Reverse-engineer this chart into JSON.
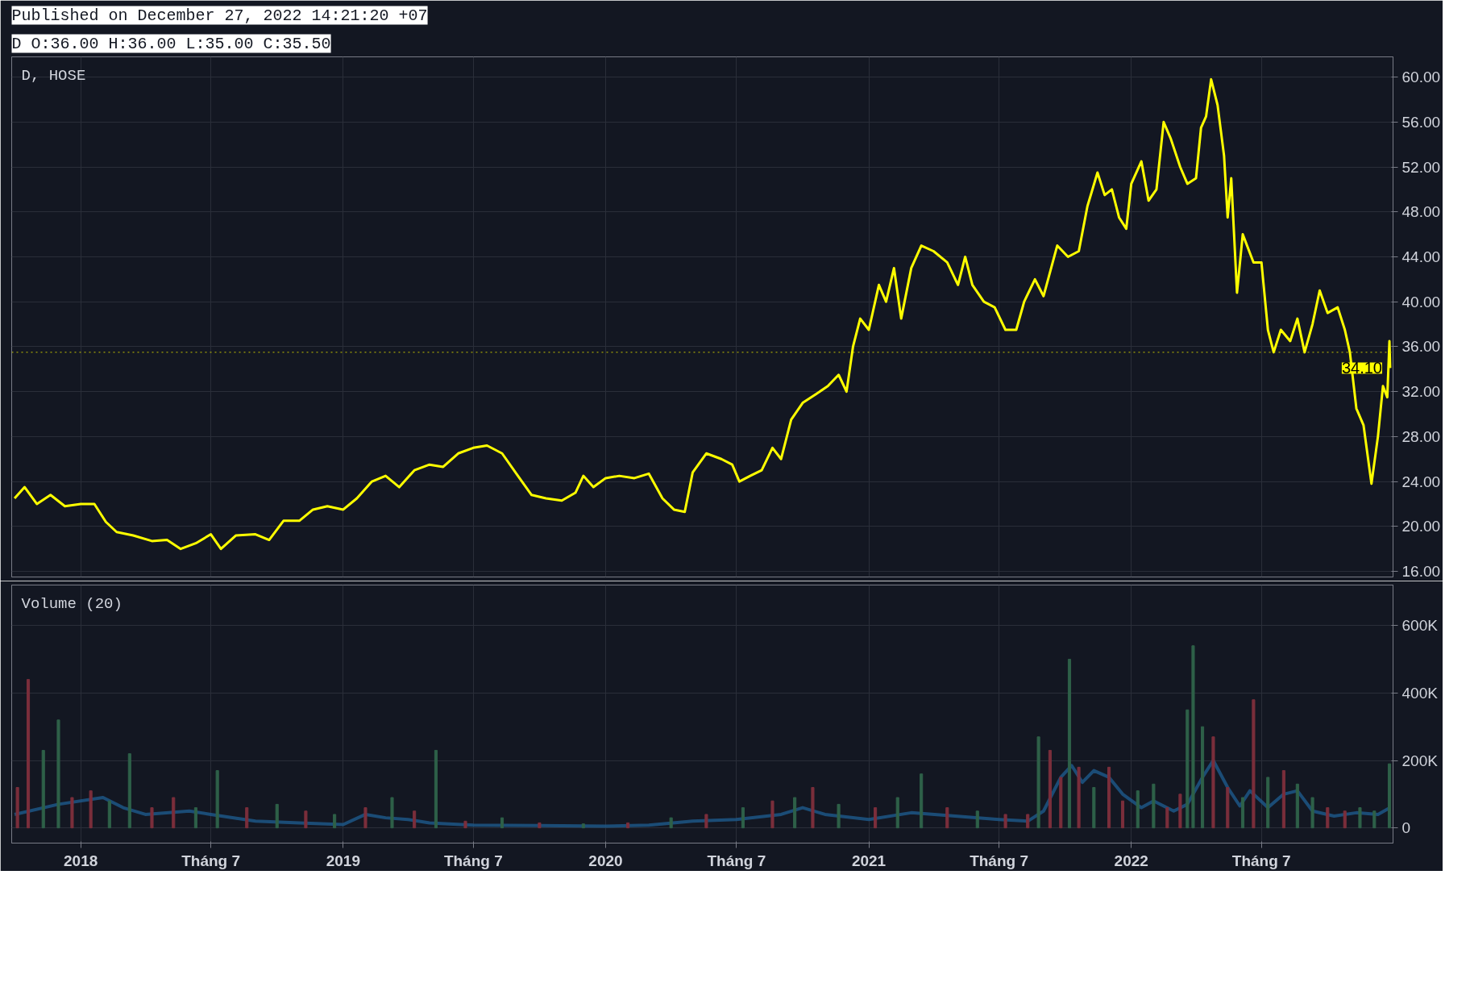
{
  "chart_data": [
    {
      "type": "line",
      "title": "D, HOSE",
      "annotations": [
        "Published on December 27, 2022 14:21:20 +07",
        "D O:36.00 H:36.00 L:35.00 C:35.50",
        {
          "text": "34.10",
          "x": "2022-12-27",
          "y": 34.1
        }
      ],
      "xlim": [
        "2017-09-27",
        "2022-12-31"
      ],
      "xticks": [
        {
          "value": "2018-01-01",
          "label": null
        },
        {
          "value": "2018-07-01",
          "label": null
        },
        {
          "value": "2019-01-01",
          "label": null
        },
        {
          "value": "2019-07-01",
          "label": null
        },
        {
          "value": "2020-01-01",
          "label": null
        },
        {
          "value": "2020-07-01",
          "label": null
        },
        {
          "value": "2021-01-01",
          "label": null
        },
        {
          "value": "2021-07-01",
          "label": null
        },
        {
          "value": "2022-01-01",
          "label": null
        },
        {
          "value": "2022-07-01",
          "label": null
        }
      ],
      "ylim": [
        15.5,
        61.8
      ],
      "yticks": [
        {
          "value": 16,
          "label": "16.00"
        },
        {
          "value": 20,
          "label": "20.00"
        },
        {
          "value": 24,
          "label": "24.00"
        },
        {
          "value": 28,
          "label": "28.00"
        },
        {
          "value": 32,
          "label": "32.00"
        },
        {
          "value": 36,
          "label": "36.00"
        },
        {
          "value": 40,
          "label": "40.00"
        },
        {
          "value": 44,
          "label": "44.00"
        },
        {
          "value": 48,
          "label": "48.00"
        },
        {
          "value": 52,
          "label": "52.00"
        },
        {
          "value": 56,
          "label": "56.00"
        },
        {
          "value": 60,
          "label": "60.00"
        }
      ],
      "tick_labels": "y",
      "grid": true,
      "ref_lines": [
        {
          "axis": "y",
          "value": 35.5,
          "label": null,
          "color": "#c8c800",
          "line_style": "dotted"
        }
      ],
      "series": [
        {
          "color": "#ffff00",
          "x": [
            "2017-10-01",
            "2017-10-15",
            "2017-11-01",
            "2017-11-20",
            "2017-12-10",
            "2018-01-01",
            "2018-01-20",
            "2018-02-05",
            "2018-02-20",
            "2018-03-15",
            "2018-04-10",
            "2018-05-01",
            "2018-05-20",
            "2018-06-10",
            "2018-07-01",
            "2018-07-15",
            "2018-08-05",
            "2018-09-01",
            "2018-09-20",
            "2018-10-10",
            "2018-11-01",
            "2018-11-20",
            "2018-12-10",
            "2019-01-01",
            "2019-01-20",
            "2019-02-10",
            "2019-03-01",
            "2019-03-20",
            "2019-04-10",
            "2019-05-01",
            "2019-05-20",
            "2019-06-10",
            "2019-07-01",
            "2019-07-20",
            "2019-08-10",
            "2019-09-01",
            "2019-09-20",
            "2019-10-10",
            "2019-11-01",
            "2019-11-20",
            "2019-12-01",
            "2019-12-15",
            "2020-01-01",
            "2020-01-20",
            "2020-02-10",
            "2020-03-01",
            "2020-03-20",
            "2020-04-05",
            "2020-04-20",
            "2020-05-01",
            "2020-05-20",
            "2020-06-10",
            "2020-06-25",
            "2020-07-05",
            "2020-07-20",
            "2020-08-05",
            "2020-08-20",
            "2020-09-01",
            "2020-09-15",
            "2020-10-01",
            "2020-10-20",
            "2020-11-05",
            "2020-11-20",
            "2020-12-01",
            "2020-12-10",
            "2020-12-20",
            "2021-01-01",
            "2021-01-15",
            "2021-01-25",
            "2021-02-05",
            "2021-02-15",
            "2021-03-01",
            "2021-03-15",
            "2021-04-01",
            "2021-04-20",
            "2021-05-05",
            "2021-05-15",
            "2021-05-25",
            "2021-06-10",
            "2021-06-25",
            "2021-07-10",
            "2021-07-25",
            "2021-08-05",
            "2021-08-20",
            "2021-09-01",
            "2021-09-20",
            "2021-10-05",
            "2021-10-20",
            "2021-11-01",
            "2021-11-15",
            "2021-11-25",
            "2021-12-05",
            "2021-12-15",
            "2021-12-25",
            "2022-01-01",
            "2022-01-15",
            "2022-01-25",
            "2022-02-05",
            "2022-02-15",
            "2022-02-25",
            "2022-03-10",
            "2022-03-20",
            "2022-04-01",
            "2022-04-08",
            "2022-04-15",
            "2022-04-22",
            "2022-05-01",
            "2022-05-10",
            "2022-05-15",
            "2022-05-20",
            "2022-05-28",
            "2022-06-05",
            "2022-06-20",
            "2022-07-01",
            "2022-07-10",
            "2022-07-18",
            "2022-07-28",
            "2022-08-10",
            "2022-08-20",
            "2022-08-30",
            "2022-09-10",
            "2022-09-20",
            "2022-10-01",
            "2022-10-15",
            "2022-10-25",
            "2022-11-01",
            "2022-11-10",
            "2022-11-20",
            "2022-12-01",
            "2022-12-10",
            "2022-12-17",
            "2022-12-23",
            "2022-12-26",
            "2022-12-27"
          ],
          "values": [
            22.5,
            23.5,
            22.0,
            22.8,
            21.8,
            22.0,
            22.0,
            20.4,
            19.5,
            19.2,
            18.7,
            18.8,
            18.0,
            18.5,
            19.3,
            18.0,
            19.2,
            19.3,
            18.8,
            20.5,
            20.5,
            21.5,
            21.8,
            21.5,
            22.5,
            24.0,
            24.5,
            23.5,
            25.0,
            25.5,
            25.3,
            26.5,
            27.0,
            27.2,
            26.5,
            24.5,
            22.8,
            22.5,
            22.3,
            23.0,
            24.5,
            23.5,
            24.3,
            24.5,
            24.3,
            24.7,
            22.5,
            21.5,
            21.3,
            24.8,
            26.5,
            26.0,
            25.5,
            24.0,
            24.5,
            25.0,
            27.0,
            26.0,
            29.5,
            31.0,
            31.8,
            32.5,
            33.5,
            32.0,
            36.0,
            38.5,
            37.5,
            41.5,
            40.0,
            43.0,
            38.5,
            43.0,
            45.0,
            44.5,
            43.5,
            41.5,
            44.0,
            41.5,
            40.0,
            39.5,
            37.5,
            37.5,
            40.0,
            42.0,
            40.5,
            45.0,
            44.0,
            44.5,
            48.5,
            51.5,
            49.5,
            50.0,
            47.5,
            46.5,
            50.5,
            52.5,
            49.0,
            50.0,
            56.0,
            54.5,
            52.0,
            50.5,
            51.0,
            55.5,
            56.5,
            59.8,
            57.5,
            53.0,
            47.5,
            51.0,
            40.8,
            46.0,
            43.5,
            43.5,
            37.5,
            35.5,
            37.5,
            36.5,
            38.5,
            35.5,
            38.0,
            41.0,
            39.0,
            39.5,
            37.5,
            35.5,
            30.5,
            29.0,
            23.8,
            28.0,
            32.5,
            31.5,
            36.5,
            34.1
          ]
        }
      ]
    },
    {
      "type": "bar",
      "title": "Volume (20)",
      "xlim": [
        "2017-09-27",
        "2022-12-31"
      ],
      "xticks": [
        {
          "value": "2018-01-01",
          "label": "2018"
        },
        {
          "value": "2018-07-01",
          "label": "Tháng 7"
        },
        {
          "value": "2019-01-01",
          "label": "2019"
        },
        {
          "value": "2019-07-01",
          "label": "Tháng 7"
        },
        {
          "value": "2020-01-01",
          "label": "2020"
        },
        {
          "value": "2020-07-01",
          "label": "Tháng 7"
        },
        {
          "value": "2021-01-01",
          "label": "2021"
        },
        {
          "value": "2021-07-01",
          "label": "Tháng 7"
        },
        {
          "value": "2022-01-01",
          "label": "2022"
        },
        {
          "value": "2022-07-01",
          "label": "Tháng 7"
        }
      ],
      "ylim": [
        -45000,
        720000
      ],
      "yticks": [
        0,
        {
          "value": 200000,
          "label": "200K"
        },
        {
          "value": 400000,
          "label": "400K"
        },
        {
          "value": 600000,
          "label": "600K"
        }
      ],
      "grid": true,
      "series": [
        {
          "type": "bar",
          "x": [
            "2017-10-05",
            "2017-10-20",
            "2017-11-10",
            "2017-12-01",
            "2017-12-20",
            "2018-01-15",
            "2018-02-10",
            "2018-03-10",
            "2018-04-10",
            "2018-05-10",
            "2018-06-10",
            "2018-07-10",
            "2018-08-20",
            "2018-10-01",
            "2018-11-10",
            "2018-12-20",
            "2019-02-01",
            "2019-03-10",
            "2019-04-10",
            "2019-05-10",
            "2019-06-20",
            "2019-08-10",
            "2019-10-01",
            "2019-12-01",
            "2020-02-01",
            "2020-04-01",
            "2020-05-20",
            "2020-07-10",
            "2020-08-20",
            "2020-09-20",
            "2020-10-15",
            "2020-11-20",
            "2021-01-10",
            "2021-02-10",
            "2021-03-15",
            "2021-04-20",
            "2021-06-01",
            "2021-07-10",
            "2021-08-10",
            "2021-08-25",
            "2021-09-10",
            "2021-09-25",
            "2021-10-07",
            "2021-10-20",
            "2021-11-10",
            "2021-12-01",
            "2021-12-20",
            "2022-01-10",
            "2022-02-01",
            "2022-02-20",
            "2022-03-10",
            "2022-03-20",
            "2022-03-28",
            "2022-04-10",
            "2022-04-25",
            "2022-05-15",
            "2022-06-05",
            "2022-06-20",
            "2022-07-10",
            "2022-08-01",
            "2022-08-20",
            "2022-09-10",
            "2022-10-01",
            "2022-10-25",
            "2022-11-15",
            "2022-12-05",
            "2022-12-26"
          ],
          "values": [
            120000,
            440000,
            230000,
            320000,
            90000,
            110000,
            80000,
            220000,
            60000,
            90000,
            60000,
            170000,
            60000,
            70000,
            50000,
            40000,
            60000,
            90000,
            50000,
            230000,
            20000,
            30000,
            15000,
            12000,
            15000,
            30000,
            40000,
            60000,
            80000,
            90000,
            120000,
            70000,
            60000,
            90000,
            160000,
            60000,
            50000,
            40000,
            40000,
            270000,
            230000,
            150000,
            500000,
            180000,
            120000,
            180000,
            80000,
            110000,
            130000,
            60000,
            100000,
            350000,
            540000,
            300000,
            270000,
            120000,
            90000,
            380000,
            150000,
            170000,
            130000,
            90000,
            60000,
            50000,
            60000,
            50000,
            190000
          ],
          "colors": [
            "#7a2e3b",
            "#7a2e3b",
            "#2e6048",
            "#2e6048",
            "#7a2e3b",
            "#7a2e3b",
            "#2e6048",
            "#2e6048",
            "#7a2e3b",
            "#7a2e3b",
            "#2e6048",
            "#2e6048",
            "#7a2e3b",
            "#2e6048",
            "#7a2e3b",
            "#2e6048",
            "#7a2e3b",
            "#2e6048",
            "#7a2e3b",
            "#2e6048",
            "#7a2e3b",
            "#2e6048",
            "#7a2e3b",
            "#2e6048",
            "#7a2e3b",
            "#2e6048",
            "#7a2e3b",
            "#2e6048",
            "#7a2e3b",
            "#2e6048",
            "#7a2e3b",
            "#2e6048",
            "#7a2e3b",
            "#2e6048",
            "#2e6048",
            "#7a2e3b",
            "#2e6048",
            "#7a2e3b",
            "#7a2e3b",
            "#2e6048",
            "#7a2e3b",
            "#7a2e3b",
            "#2e6048",
            "#7a2e3b",
            "#2e6048",
            "#7a2e3b",
            "#7a2e3b",
            "#2e6048",
            "#2e6048",
            "#7a2e3b",
            "#7a2e3b",
            "#2e6048",
            "#2e6048",
            "#2e6048",
            "#7a2e3b",
            "#7a2e3b",
            "#2e6048",
            "#7a2e3b",
            "#2e6048",
            "#7a2e3b",
            "#2e6048",
            "#2e6048",
            "#7a2e3b",
            "#7a2e3b",
            "#2e6048",
            "#2e6048",
            "#2e6048"
          ]
        },
        {
          "type": "line",
          "color": "#1e5a8c",
          "x": [
            "2017-10-01",
            "2017-12-01",
            "2018-02-01",
            "2018-03-01",
            "2018-04-01",
            "2018-06-01",
            "2018-07-01",
            "2018-09-01",
            "2018-11-01",
            "2019-01-01",
            "2019-02-01",
            "2019-03-01",
            "2019-04-01",
            "2019-05-01",
            "2019-07-01",
            "2019-10-01",
            "2020-01-01",
            "2020-03-01",
            "2020-05-01",
            "2020-07-01",
            "2020-09-01",
            "2020-10-01",
            "2020-11-01",
            "2021-01-01",
            "2021-03-01",
            "2021-05-01",
            "2021-07-01",
            "2021-08-10",
            "2021-09-01",
            "2021-09-25",
            "2021-10-10",
            "2021-10-25",
            "2021-11-10",
            "2021-12-01",
            "2021-12-20",
            "2022-01-15",
            "2022-02-01",
            "2022-03-01",
            "2022-03-20",
            "2022-04-10",
            "2022-04-25",
            "2022-05-15",
            "2022-06-01",
            "2022-06-15",
            "2022-07-10",
            "2022-08-01",
            "2022-08-20",
            "2022-09-10",
            "2022-10-10",
            "2022-11-10",
            "2022-12-10",
            "2022-12-27"
          ],
          "values": [
            40000,
            70000,
            90000,
            60000,
            40000,
            50000,
            40000,
            20000,
            15000,
            10000,
            40000,
            30000,
            25000,
            15000,
            8000,
            7000,
            5000,
            8000,
            20000,
            25000,
            40000,
            60000,
            40000,
            25000,
            45000,
            35000,
            25000,
            20000,
            50000,
            150000,
            185000,
            135000,
            170000,
            150000,
            100000,
            60000,
            80000,
            50000,
            70000,
            150000,
            200000,
            120000,
            65000,
            110000,
            60000,
            100000,
            110000,
            50000,
            35000,
            45000,
            40000,
            60000
          ]
        }
      ]
    }
  ]
}
